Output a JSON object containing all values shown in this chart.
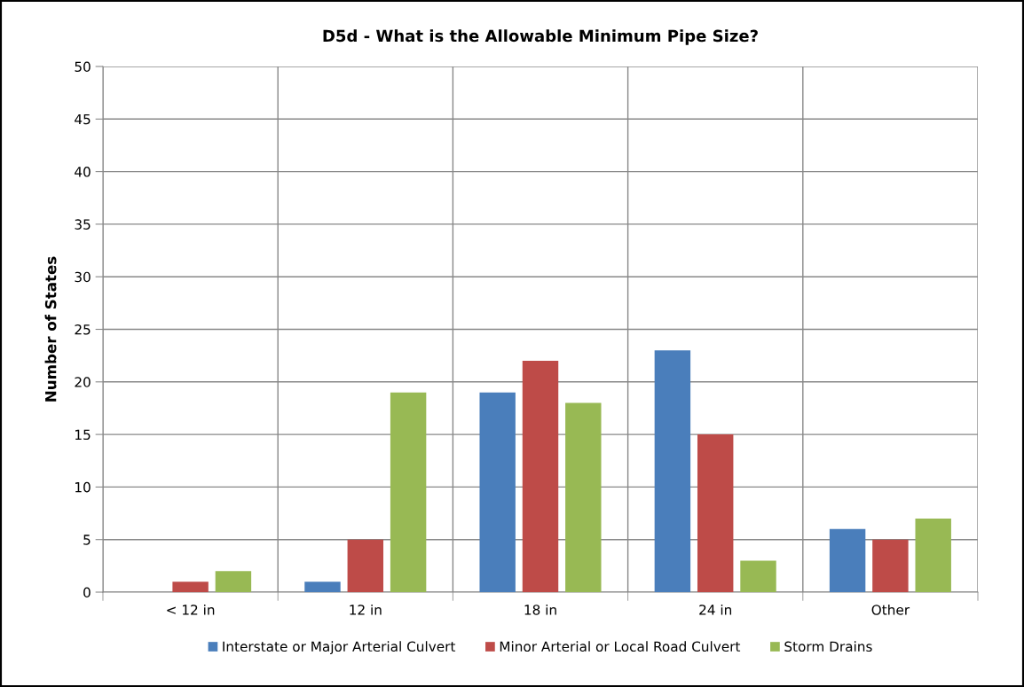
{
  "chart_data": {
    "type": "bar",
    "title": "D5d - What is the Allowable Minimum Pipe Size?",
    "ylabel": "Number of States",
    "categories": [
      "< 12 in",
      "12 in",
      "18 in",
      "24 in",
      "Other"
    ],
    "series": [
      {
        "name": "Interstate or Major Arterial Culvert",
        "color": "#4a7ebb",
        "values": [
          0,
          1,
          19,
          23,
          6
        ]
      },
      {
        "name": "Minor Arterial or Local Road Culvert",
        "color": "#be4b48",
        "values": [
          1,
          5,
          22,
          15,
          5
        ]
      },
      {
        "name": "Storm Drains",
        "color": "#98b954",
        "values": [
          2,
          19,
          18,
          3,
          7
        ]
      }
    ],
    "ylim": [
      0,
      50
    ],
    "yticks": [
      0,
      5,
      10,
      15,
      20,
      25,
      30,
      35,
      40,
      45,
      50
    ],
    "grid": true,
    "legend": "bottom"
  }
}
